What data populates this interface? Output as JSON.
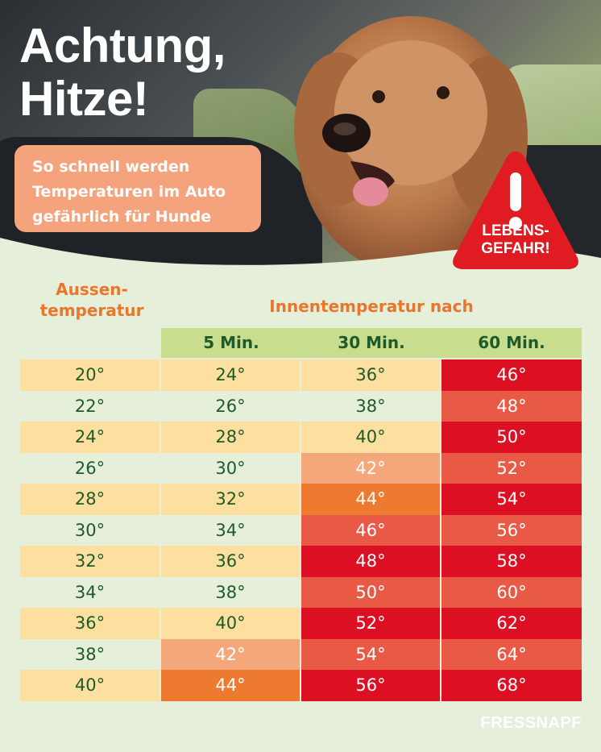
{
  "hero": {
    "headline": "Achtung,\nHitze!",
    "subtitle": "So schnell werden\nTemperaturen im Auto\ngefährlich für Hunde",
    "warning_text": "LEBENS-\nGEFAHR!",
    "warning_symbol": "!"
  },
  "table": {
    "left_header": "Aussen-\ntemperatur",
    "right_header": "Innentemperatur nach",
    "time_columns": [
      "5 Min.",
      "30 Min.",
      "60 Min."
    ],
    "rows": [
      {
        "cells": [
          "20°",
          "24°",
          "36°",
          "46°"
        ],
        "styles": [
          "yellow",
          "yellow",
          "yellow",
          "red"
        ]
      },
      {
        "cells": [
          "22°",
          "26°",
          "38°",
          "48°"
        ],
        "styles": [
          "pale",
          "pale",
          "pale",
          "redlight"
        ]
      },
      {
        "cells": [
          "24°",
          "28°",
          "40°",
          "50°"
        ],
        "styles": [
          "yellow",
          "yellow",
          "yellow",
          "red"
        ]
      },
      {
        "cells": [
          "26°",
          "30°",
          "42°",
          "52°"
        ],
        "styles": [
          "pale",
          "pale",
          "salmon",
          "redlight"
        ]
      },
      {
        "cells": [
          "28°",
          "32°",
          "44°",
          "54°"
        ],
        "styles": [
          "yellow",
          "yellow",
          "orange",
          "red"
        ]
      },
      {
        "cells": [
          "30°",
          "34°",
          "46°",
          "56°"
        ],
        "styles": [
          "pale",
          "pale",
          "redlight",
          "redlight"
        ]
      },
      {
        "cells": [
          "32°",
          "36°",
          "48°",
          "58°"
        ],
        "styles": [
          "yellow",
          "yellow",
          "red",
          "red"
        ]
      },
      {
        "cells": [
          "34°",
          "38°",
          "50°",
          "60°"
        ],
        "styles": [
          "pale",
          "pale",
          "redlight",
          "redlight"
        ]
      },
      {
        "cells": [
          "36°",
          "40°",
          "52°",
          "62°"
        ],
        "styles": [
          "yellow",
          "yellow",
          "red",
          "red"
        ]
      },
      {
        "cells": [
          "38°",
          "42°",
          "54°",
          "64°"
        ],
        "styles": [
          "pale",
          "salmon",
          "redlight",
          "redlight"
        ]
      },
      {
        "cells": [
          "40°",
          "44°",
          "56°",
          "68°"
        ],
        "styles": [
          "yellow",
          "orange",
          "red",
          "red"
        ]
      }
    ]
  },
  "colors": {
    "yellow": "#fde0a0",
    "pale": "#e6efda",
    "salmon": "#f5a77c",
    "orange": "#ee7a30",
    "redlight": "#e85a45",
    "red": "#dc0f23",
    "header_green": "#c9dd8f",
    "text_green": "#1e5a2a",
    "accent_orange": "#e8762c"
  },
  "brand": {
    "logo": "FRESSNAPF"
  }
}
